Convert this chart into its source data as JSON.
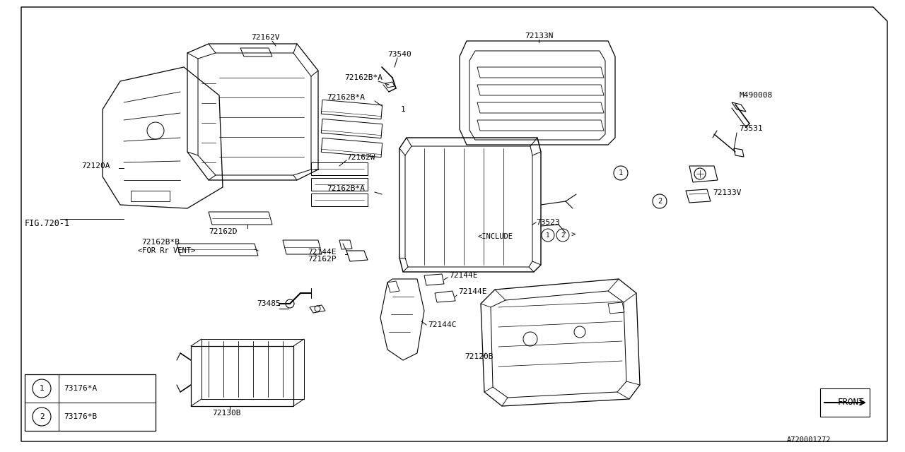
{
  "bg_color": "#ffffff",
  "line_color": "#000000",
  "fig_ref": "FIG.720-1",
  "catalog_num": "A720001272",
  "front_label": "FRONT",
  "legend": [
    {
      "num": "1",
      "code": "73176*A"
    },
    {
      "num": "2",
      "code": "73176*B"
    }
  ]
}
